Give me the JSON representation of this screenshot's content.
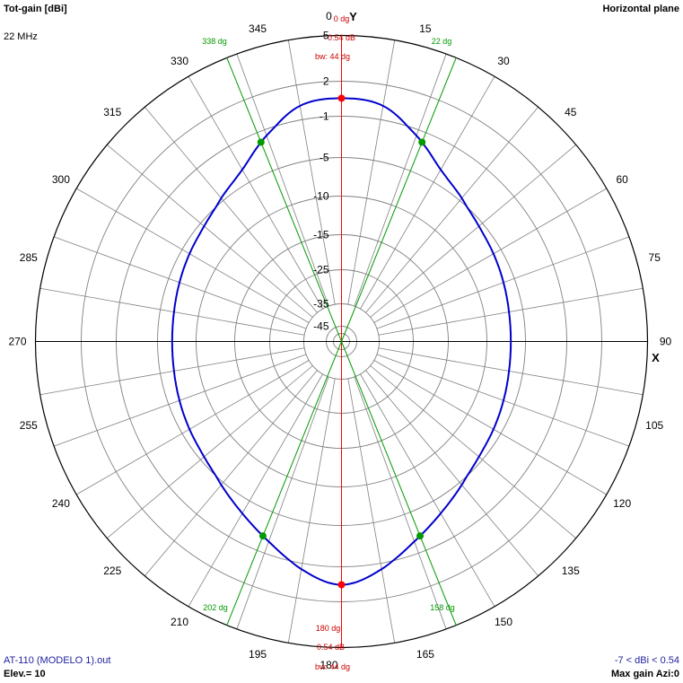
{
  "header": {
    "title": "Tot-gain [dBi]",
    "plane": "Horizontal plane",
    "frequency": "22 MHz"
  },
  "footer": {
    "file": "AT-110 (MODELO 1).out",
    "elevation": "Elev.= 10",
    "range": "-7 < dBi < 0.54",
    "max_gain": "Max gain Azi:0"
  },
  "colors": {
    "pattern": "#0000cc",
    "main_lobe": "#ff0000",
    "beamwidth": "#009900",
    "grid": "#808080",
    "axis": "#000000"
  },
  "chart_data": {
    "type": "polar",
    "title": "Tot-gain [dBi]",
    "plane": "Horizontal plane",
    "axis_labels": {
      "y": "Y",
      "x": "X"
    },
    "azimuth_tick_labels": [
      "0",
      "15",
      "30",
      "45",
      "60",
      "75",
      "90",
      "105",
      "120",
      "135",
      "150",
      "165",
      "180",
      "195",
      "210",
      "225",
      "240",
      "255",
      "270",
      "285",
      "300",
      "315",
      "330",
      "345"
    ],
    "radial_tick_labels": [
      "5",
      "2",
      "-1",
      "-5",
      "-10",
      "-15",
      "-25",
      "-35",
      "-45"
    ],
    "radial_ticks_dbi": [
      5,
      2,
      -1,
      -5,
      -10,
      -15,
      -25,
      -35,
      -45
    ],
    "max_gain": {
      "label_azimuth": "0 dg",
      "label_gain": "0.54 dB",
      "beamwidth": "bw: 44 dg"
    },
    "back_lobe": {
      "label_azimuth": "180 dg",
      "label_gain": "0.54 dB",
      "beamwidth": "bw: 44 dg"
    },
    "half_power_points": [
      {
        "azimuth_deg": 22,
        "label": "22 dg"
      },
      {
        "azimuth_deg": 338,
        "label": "338 dg"
      },
      {
        "azimuth_deg": 158,
        "label": "158 dg"
      },
      {
        "azimuth_deg": 202,
        "label": "202 dg"
      }
    ],
    "pattern": {
      "name": "Tot-gain",
      "azimuth_deg": [
        0,
        10,
        20,
        30,
        40,
        50,
        60,
        70,
        80,
        90,
        100,
        110,
        120,
        130,
        140,
        150,
        160,
        170,
        180,
        190,
        200,
        210,
        220,
        230,
        240,
        250,
        260,
        270,
        280,
        290,
        300,
        310,
        320,
        330,
        340,
        350
      ],
      "gain_dbi": [
        0.54,
        0.2,
        -1.6,
        -3.6,
        -4.7,
        -5.6,
        -6.1,
        -6.5,
        -6.8,
        -6.9,
        -6.8,
        -6.5,
        -6.1,
        -5.6,
        -4.7,
        -3.6,
        -2.2,
        -0.5,
        0.54,
        -0.5,
        -2.2,
        -3.6,
        -4.7,
        -5.6,
        -6.1,
        -6.5,
        -6.8,
        -6.9,
        -6.8,
        -6.5,
        -6.1,
        -5.6,
        -4.7,
        -3.6,
        -1.6,
        0.2
      ]
    },
    "gain_range": [
      -7,
      0.54
    ]
  }
}
